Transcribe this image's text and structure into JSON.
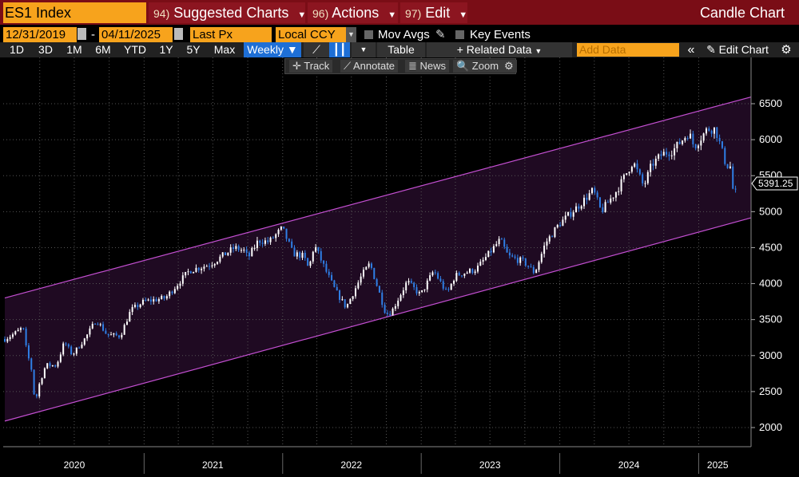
{
  "header": {
    "ticker": "ES1 Index",
    "menus": [
      {
        "num": "94)",
        "label": "Suggested Charts"
      },
      {
        "num": "96)",
        "label": "Actions"
      },
      {
        "num": "97)",
        "label": "Edit"
      }
    ],
    "chart_type": "Candle Chart"
  },
  "controls": {
    "start_date": "12/31/2019",
    "end_date": "04/11/2025",
    "date_separator": "-",
    "field": "Last Px",
    "currency": "Local CCY",
    "mov_avgs": "Mov Avgs",
    "key_events": "Key Events"
  },
  "toolbar": {
    "periods": [
      "1D",
      "3D",
      "1M",
      "6M",
      "YTD",
      "1Y",
      "5Y",
      "Max"
    ],
    "frequency": "Weekly ▼",
    "table": "Table",
    "related_data": "+ Related Data",
    "add_data_placeholder": "Add Data",
    "collapse": "«",
    "edit_chart": "✎ Edit Chart",
    "gear": "⚙"
  },
  "subtoolbar": {
    "track": "✛ Track",
    "annotate": "⟋ Annotate",
    "news": "≣ News",
    "zoom": "🔍 Zoom",
    "gear": "⚙"
  },
  "colors": {
    "title_bar": "#7a0d16",
    "accent_orange": "#f7a31c",
    "channel_line": "#c34fd1",
    "channel_fill": "#1f0a22",
    "candle_up": "#ffffff",
    "candle_down": "#2f7fe6",
    "grid": "#555555"
  },
  "chart_data": {
    "type": "candlestick",
    "frequency": "weekly",
    "ylim": [
      1800,
      6600
    ],
    "yticks": [
      2000,
      2500,
      3000,
      3500,
      4000,
      4500,
      5000,
      5500,
      6000,
      6500
    ],
    "x_labels": [
      "2020",
      "2021",
      "2022",
      "2023",
      "2024",
      "2025"
    ],
    "last_price": "5391.25",
    "channel": {
      "upper": [
        {
          "date": "2019-12-31",
          "value": 3800
        },
        {
          "date": "2025-04-11",
          "value": 6540
        }
      ],
      "lower": [
        {
          "date": "2019-12-31",
          "value": 2090
        },
        {
          "date": "2025-04-11",
          "value": 4860
        }
      ]
    },
    "close_path": [
      [
        "2019-12-31",
        3230
      ],
      [
        "2020-01-24",
        3300
      ],
      [
        "2020-02-14",
        3380
      ],
      [
        "2020-02-21",
        3330
      ],
      [
        "2020-02-28",
        2950
      ],
      [
        "2020-03-06",
        2960
      ],
      [
        "2020-03-13",
        2700
      ],
      [
        "2020-03-20",
        2300
      ],
      [
        "2020-03-27",
        2540
      ],
      [
        "2020-04-17",
        2870
      ],
      [
        "2020-05-15",
        2860
      ],
      [
        "2020-06-05",
        3190
      ],
      [
        "2020-06-26",
        3010
      ],
      [
        "2020-07-31",
        3250
      ],
      [
        "2020-08-28",
        3500
      ],
      [
        "2020-09-25",
        3290
      ],
      [
        "2020-10-30",
        3270
      ],
      [
        "2020-11-27",
        3630
      ],
      [
        "2020-12-31",
        3750
      ],
      [
        "2021-02-26",
        3800
      ],
      [
        "2021-04-30",
        4180
      ],
      [
        "2021-06-25",
        4270
      ],
      [
        "2021-08-27",
        4500
      ],
      [
        "2021-09-24",
        4450
      ],
      [
        "2021-10-01",
        4350
      ],
      [
        "2021-10-29",
        4600
      ],
      [
        "2021-11-26",
        4580
      ],
      [
        "2021-12-31",
        4770
      ],
      [
        "2022-01-28",
        4420
      ],
      [
        "2022-02-25",
        4380
      ],
      [
        "2022-03-11",
        4200
      ],
      [
        "2022-03-25",
        4540
      ],
      [
        "2022-04-29",
        4130
      ],
      [
        "2022-05-20",
        3900
      ],
      [
        "2022-06-17",
        3670
      ],
      [
        "2022-07-29",
        4120
      ],
      [
        "2022-08-19",
        4280
      ],
      [
        "2022-09-30",
        3580
      ],
      [
        "2022-10-14",
        3600
      ],
      [
        "2022-11-25",
        4030
      ],
      [
        "2022-12-30",
        3840
      ],
      [
        "2023-02-03",
        4180
      ],
      [
        "2023-03-10",
        3860
      ],
      [
        "2023-03-31",
        4110
      ],
      [
        "2023-05-26",
        4200
      ],
      [
        "2023-07-28",
        4610
      ],
      [
        "2023-08-18",
        4380
      ],
      [
        "2023-09-29",
        4300
      ],
      [
        "2023-10-27",
        4150
      ],
      [
        "2023-11-24",
        4560
      ],
      [
        "2023-12-29",
        4820
      ],
      [
        "2024-02-23",
        5100
      ],
      [
        "2024-03-29",
        5300
      ],
      [
        "2024-04-19",
        5000
      ],
      [
        "2024-05-31",
        5300
      ],
      [
        "2024-07-12",
        5700
      ],
      [
        "2024-08-09",
        5350
      ],
      [
        "2024-08-30",
        5650
      ],
      [
        "2024-09-27",
        5800
      ],
      [
        "2024-10-25",
        5850
      ],
      [
        "2024-12-06",
        6100
      ],
      [
        "2024-12-20",
        5900
      ],
      [
        "2025-01-24",
        6150
      ],
      [
        "2025-02-14",
        6150
      ],
      [
        "2025-03-14",
        5650
      ],
      [
        "2025-03-28",
        5620
      ],
      [
        "2025-04-04",
        5090
      ],
      [
        "2025-04-11",
        5390
      ]
    ]
  }
}
